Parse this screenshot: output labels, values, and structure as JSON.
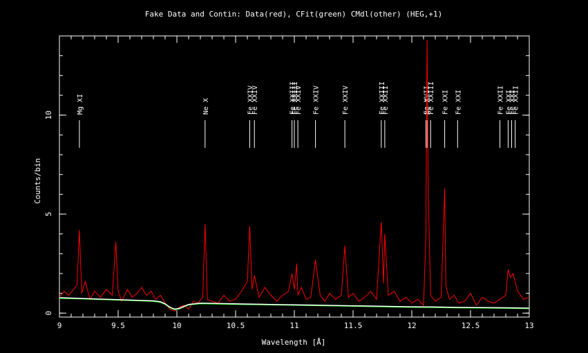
{
  "chart_data": {
    "type": "line",
    "title": "Fake Data and Contin: Data(red), CFit(green) CMdl(other) (HEG,+1)",
    "xlabel": "Wavelength [Å]",
    "ylabel": "Counts/bin",
    "xlim": [
      9,
      13
    ],
    "ylim": [
      -0.2,
      14
    ],
    "x_ticks": [
      {
        "value": 9,
        "label": "9"
      },
      {
        "value": 9.5,
        "label": "9.5"
      },
      {
        "value": 10,
        "label": "10"
      },
      {
        "value": 10.5,
        "label": "10.5"
      },
      {
        "value": 11,
        "label": "11"
      },
      {
        "value": 11.5,
        "label": "11.5"
      },
      {
        "value": 12,
        "label": "12"
      },
      {
        "value": 12.5,
        "label": "12.5"
      },
      {
        "value": 13,
        "label": "13"
      }
    ],
    "y_ticks": [
      {
        "value": 0,
        "label": "0"
      },
      {
        "value": 5,
        "label": "5"
      },
      {
        "value": 10,
        "label": "10"
      }
    ],
    "line_ids": [
      {
        "label": "Mg XI",
        "x": 9.17
      },
      {
        "label": "Ne X",
        "x": 10.24
      },
      {
        "label": "Fe XXIV",
        "x": 10.62
      },
      {
        "label": "Fe XXIV",
        "x": 10.66
      },
      {
        "label": "Fe XXIII",
        "x": 10.98
      },
      {
        "label": "Fe XXIII",
        "x": 11.0
      },
      {
        "label": "Fe XXIV",
        "x": 11.03
      },
      {
        "label": "Fe XXIV",
        "x": 11.18
      },
      {
        "label": "Fe XXIV",
        "x": 11.43
      },
      {
        "label": "Fe XXIII",
        "x": 11.74
      },
      {
        "label": "Fe XXII",
        "x": 11.77
      },
      {
        "label": "Ne X",
        "x": 12.13
      },
      {
        "label": "Fe XVII",
        "x": 12.12
      },
      {
        "label": "Fe XXIII",
        "x": 12.16
      },
      {
        "label": "Fe XXI",
        "x": 12.28
      },
      {
        "label": "Fe XXI",
        "x": 12.39
      },
      {
        "label": "Fe XXII",
        "x": 12.75
      },
      {
        "label": "Fe XXI",
        "x": 12.82
      },
      {
        "label": "Fe XXI",
        "x": 12.85
      },
      {
        "label": "Fe XXII",
        "x": 12.88
      }
    ],
    "series": [
      {
        "name": "Data",
        "color": "#ff0000",
        "x": [
          9.0,
          9.04,
          9.08,
          9.12,
          9.15,
          9.17,
          9.19,
          9.22,
          9.26,
          9.3,
          9.35,
          9.4,
          9.45,
          9.48,
          9.5,
          9.53,
          9.58,
          9.62,
          9.66,
          9.7,
          9.74,
          9.78,
          9.82,
          9.86,
          9.9,
          9.94,
          9.98,
          10.02,
          10.06,
          10.1,
          10.14,
          10.18,
          10.22,
          10.24,
          10.26,
          10.3,
          10.35,
          10.4,
          10.45,
          10.5,
          10.55,
          10.6,
          10.62,
          10.64,
          10.66,
          10.7,
          10.75,
          10.8,
          10.85,
          10.9,
          10.95,
          10.98,
          11.0,
          11.02,
          11.03,
          11.06,
          11.1,
          11.14,
          11.18,
          11.22,
          11.26,
          11.3,
          11.35,
          11.4,
          11.43,
          11.46,
          11.5,
          11.55,
          11.6,
          11.65,
          11.7,
          11.74,
          11.76,
          11.77,
          11.8,
          11.85,
          11.9,
          11.95,
          12.0,
          12.05,
          12.1,
          12.12,
          12.13,
          12.14,
          12.16,
          12.2,
          12.25,
          12.28,
          12.29,
          12.32,
          12.36,
          12.4,
          12.45,
          12.5,
          12.55,
          12.6,
          12.65,
          12.7,
          12.75,
          12.8,
          12.82,
          12.84,
          12.86,
          12.88,
          12.9,
          12.95,
          13.0
        ],
        "y": [
          0.8,
          1.1,
          0.9,
          1.2,
          1.4,
          4.2,
          1.0,
          1.6,
          0.7,
          1.1,
          0.8,
          1.2,
          0.9,
          3.6,
          1.1,
          0.6,
          1.2,
          0.8,
          1.0,
          1.3,
          0.9,
          1.1,
          0.7,
          0.9,
          0.5,
          0.2,
          0.1,
          0.3,
          0.4,
          0.2,
          0.6,
          0.5,
          0.8,
          4.5,
          0.7,
          0.6,
          0.5,
          0.9,
          0.6,
          0.7,
          1.1,
          1.6,
          4.4,
          1.2,
          1.9,
          0.8,
          1.3,
          0.9,
          0.6,
          0.9,
          1.1,
          2.0,
          1.2,
          2.5,
          0.9,
          1.3,
          0.7,
          0.8,
          2.7,
          0.9,
          0.6,
          1.0,
          0.7,
          0.9,
          3.4,
          0.8,
          1.0,
          0.6,
          0.8,
          1.1,
          0.7,
          4.6,
          1.5,
          4.0,
          0.9,
          1.1,
          0.6,
          0.8,
          0.5,
          0.7,
          0.4,
          3.9,
          13.8,
          6.1,
          0.9,
          0.6,
          0.8,
          6.3,
          1.4,
          0.7,
          0.9,
          0.5,
          0.6,
          1.0,
          0.4,
          0.8,
          0.6,
          0.5,
          0.7,
          0.9,
          2.2,
          1.8,
          2.0,
          1.6,
          1.1,
          0.7,
          0.8
        ]
      },
      {
        "name": "CFit",
        "color": "#00ff00",
        "x": [
          9.0,
          9.2,
          9.4,
          9.6,
          9.8,
          9.86,
          9.9,
          9.94,
          9.98,
          10.02,
          10.06,
          10.1,
          10.2,
          10.4,
          10.6,
          10.8,
          11.0,
          11.2,
          11.4,
          11.6,
          11.8,
          12.0,
          12.2,
          12.4,
          12.6,
          12.8,
          13.0
        ],
        "y": [
          0.75,
          0.72,
          0.68,
          0.64,
          0.6,
          0.55,
          0.45,
          0.28,
          0.18,
          0.22,
          0.32,
          0.42,
          0.48,
          0.46,
          0.44,
          0.42,
          0.4,
          0.38,
          0.36,
          0.34,
          0.32,
          0.3,
          0.29,
          0.27,
          0.26,
          0.25,
          0.23
        ]
      },
      {
        "name": "CMdl",
        "color": "#ffffff",
        "x": [
          9.0,
          9.2,
          9.4,
          9.6,
          9.8,
          9.86,
          9.9,
          9.94,
          9.98,
          10.02,
          10.06,
          10.1,
          10.2,
          10.4,
          10.6,
          10.8,
          11.0,
          11.2,
          11.4,
          11.6,
          11.8,
          12.0,
          12.2,
          12.4,
          12.6,
          12.8,
          13.0
        ],
        "y": [
          0.78,
          0.74,
          0.7,
          0.66,
          0.62,
          0.57,
          0.47,
          0.3,
          0.2,
          0.24,
          0.34,
          0.44,
          0.5,
          0.48,
          0.46,
          0.44,
          0.42,
          0.4,
          0.38,
          0.36,
          0.34,
          0.32,
          0.31,
          0.29,
          0.28,
          0.27,
          0.25
        ]
      }
    ]
  }
}
